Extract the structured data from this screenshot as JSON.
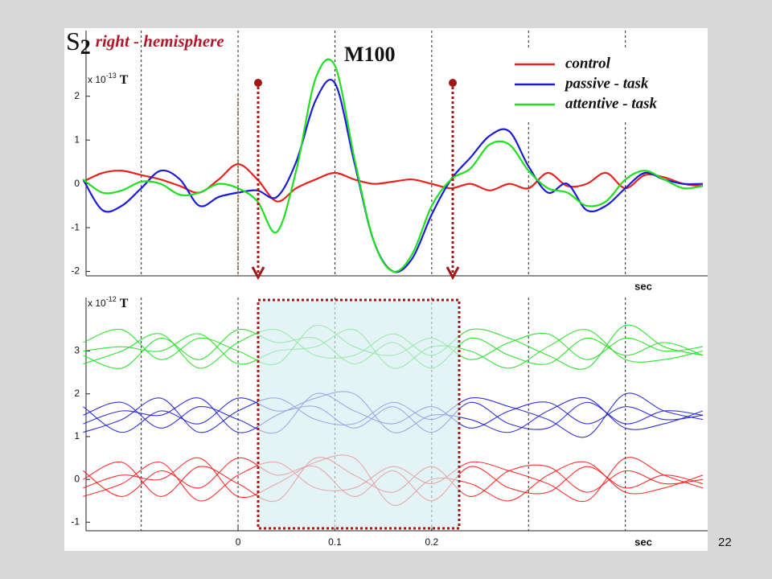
{
  "page_number": "22",
  "chart_data": [
    {
      "type": "line",
      "title_main": "S",
      "title_sub": "2",
      "title": "right - hemisphere",
      "annotation": "M100",
      "y_unit_prefix": "x 10",
      "y_unit_exponent": "-13",
      "y_unit": "T",
      "x_label": "sec",
      "x": [
        -0.16,
        -0.14,
        -0.12,
        -0.1,
        -0.08,
        -0.06,
        -0.04,
        -0.02,
        0,
        0.02,
        0.04,
        0.06,
        0.08,
        0.1,
        0.12,
        0.14,
        0.16,
        0.18,
        0.2,
        0.22,
        0.24,
        0.26,
        0.28,
        0.3,
        0.32,
        0.34,
        0.36,
        0.38,
        0.4,
        0.42,
        0.44,
        0.46,
        0.48
      ],
      "xlim": [
        -0.157,
        0.485
      ],
      "xgrid": [
        -0.1,
        0,
        0.1,
        0.2,
        0.3,
        0.4
      ],
      "ylim": [
        -2.1,
        3.5
      ],
      "yticks": [
        -2,
        -1,
        0,
        1,
        2
      ],
      "series": [
        {
          "name": "control",
          "color": "#e8231f",
          "values": [
            0.05,
            0.25,
            0.3,
            0.2,
            0.1,
            -0.05,
            -0.2,
            0.1,
            0.45,
            0.1,
            -0.4,
            -0.1,
            0.1,
            0.25,
            0.1,
            0.0,
            0.05,
            0.1,
            0.0,
            -0.1,
            0.0,
            -0.15,
            0.0,
            -0.1,
            0.25,
            -0.05,
            0.0,
            0.25,
            -0.1,
            0.2,
            0.15,
            0.0,
            -0.05
          ]
        },
        {
          "name": "passive - task",
          "color": "#1c1cd6",
          "values": [
            0.1,
            -0.6,
            -0.5,
            -0.1,
            0.3,
            0.1,
            -0.5,
            -0.3,
            -0.2,
            -0.15,
            -0.3,
            0.5,
            1.9,
            2.3,
            0.5,
            -1.3,
            -2.0,
            -1.7,
            -0.7,
            0.1,
            0.6,
            1.1,
            1.2,
            0.4,
            -0.2,
            0.0,
            -0.6,
            -0.5,
            -0.1,
            0.25,
            0.1,
            0.0,
            0.0
          ]
        },
        {
          "name": "attentive - task",
          "color": "#1ee01e",
          "values": [
            0.1,
            -0.2,
            -0.15,
            0.05,
            0.0,
            -0.25,
            -0.2,
            0.0,
            -0.1,
            -0.4,
            -1.1,
            0.3,
            2.4,
            2.7,
            0.6,
            -1.3,
            -2.0,
            -1.6,
            -0.5,
            0.1,
            0.35,
            0.9,
            0.9,
            0.3,
            -0.1,
            -0.2,
            -0.5,
            -0.4,
            0.1,
            0.3,
            0.1,
            -0.1,
            -0.05
          ]
        }
      ]
    },
    {
      "type": "line",
      "y_unit_prefix": "x 10",
      "y_unit_exponent": "-12",
      "y_unit": "T",
      "x_label": "sec",
      "x": [
        -0.16,
        -0.12,
        -0.08,
        -0.04,
        0,
        0.04,
        0.08,
        0.12,
        0.16,
        0.2,
        0.24,
        0.28,
        0.32,
        0.36,
        0.4,
        0.44,
        0.48
      ],
      "xlim": [
        -0.157,
        0.485
      ],
      "xgrid": [
        -0.1,
        0,
        0.1,
        0.2,
        0.3,
        0.4
      ],
      "xticks": [
        0,
        0.1,
        0.2
      ],
      "ylim": [
        -1.2,
        4.25
      ],
      "yticks": [
        -1,
        0,
        1,
        2,
        3
      ],
      "series": [
        {
          "color": "#1ee01e",
          "values": [
            3.2,
            3.5,
            2.8,
            3.3,
            3.0,
            2.7,
            3.6,
            3.1,
            2.9,
            3.3,
            2.8,
            3.2,
            3.4,
            2.8,
            3.3,
            3.0,
            3.1
          ]
        },
        {
          "color": "#1ee01e",
          "values": [
            2.9,
            2.6,
            3.3,
            2.8,
            3.5,
            3.2,
            3.3,
            2.7,
            3.2,
            2.6,
            3.3,
            2.9,
            2.7,
            3.3,
            2.9,
            3.2,
            2.9
          ]
        },
        {
          "color": "#1ee01e",
          "values": [
            3.0,
            3.1,
            3.0,
            3.4,
            2.7,
            3.0,
            3.1,
            3.5,
            2.6,
            3.1,
            3.0,
            2.6,
            3.1,
            3.5,
            2.8,
            2.8,
            3.0
          ]
        },
        {
          "color": "#1ee01e",
          "values": [
            2.7,
            3.0,
            3.4,
            2.6,
            3.2,
            3.5,
            2.9,
            2.9,
            3.4,
            2.9,
            3.5,
            3.3,
            2.9,
            2.6,
            3.6,
            3.1,
            2.9
          ]
        },
        {
          "color": "#1c1cd6",
          "values": [
            1.5,
            1.8,
            1.2,
            1.7,
            1.4,
            1.1,
            2.0,
            1.6,
            1.3,
            1.7,
            1.2,
            1.6,
            1.8,
            1.3,
            1.7,
            1.4,
            1.5
          ]
        },
        {
          "color": "#1c1cd6",
          "values": [
            1.7,
            1.1,
            1.6,
            1.3,
            1.9,
            1.6,
            1.7,
            1.2,
            1.7,
            1.1,
            1.8,
            1.3,
            1.2,
            1.8,
            1.3,
            1.6,
            1.5
          ]
        },
        {
          "color": "#1c1cd6",
          "values": [
            1.3,
            1.6,
            1.5,
            1.9,
            1.1,
            1.5,
            1.9,
            2.0,
            1.1,
            1.5,
            1.4,
            1.1,
            1.6,
            1.9,
            1.2,
            1.3,
            1.6
          ]
        },
        {
          "color": "#1c1cd6",
          "values": [
            1.1,
            1.4,
            1.9,
            1.1,
            1.6,
            1.9,
            1.4,
            1.3,
            1.8,
            1.4,
            1.9,
            1.7,
            1.4,
            1.0,
            2.0,
            1.6,
            1.4
          ]
        },
        {
          "color": "#ff1a1a",
          "values": [
            0.0,
            0.4,
            -0.4,
            0.3,
            -0.1,
            -0.5,
            0.5,
            0.1,
            -0.3,
            0.3,
            -0.4,
            0.2,
            0.3,
            -0.3,
            0.2,
            -0.1,
            0.0
          ]
        },
        {
          "color": "#ff1a1a",
          "values": [
            0.2,
            -0.4,
            0.2,
            -0.2,
            0.5,
            0.1,
            0.3,
            -0.4,
            0.2,
            -0.5,
            0.3,
            -0.2,
            -0.3,
            0.3,
            -0.2,
            0.1,
            -0.1
          ]
        },
        {
          "color": "#ff1a1a",
          "values": [
            -0.2,
            0.1,
            0.0,
            0.5,
            -0.4,
            -0.1,
            0.4,
            0.5,
            -0.6,
            0.0,
            -0.1,
            -0.5,
            0.1,
            0.4,
            -0.3,
            -0.2,
            0.1
          ]
        },
        {
          "color": "#ff1a1a",
          "values": [
            -0.4,
            -0.1,
            0.4,
            -0.5,
            0.1,
            0.4,
            -0.2,
            -0.2,
            0.3,
            -0.1,
            0.4,
            0.2,
            -0.1,
            -0.5,
            0.5,
            0.1,
            -0.2
          ]
        }
      ]
    }
  ]
}
